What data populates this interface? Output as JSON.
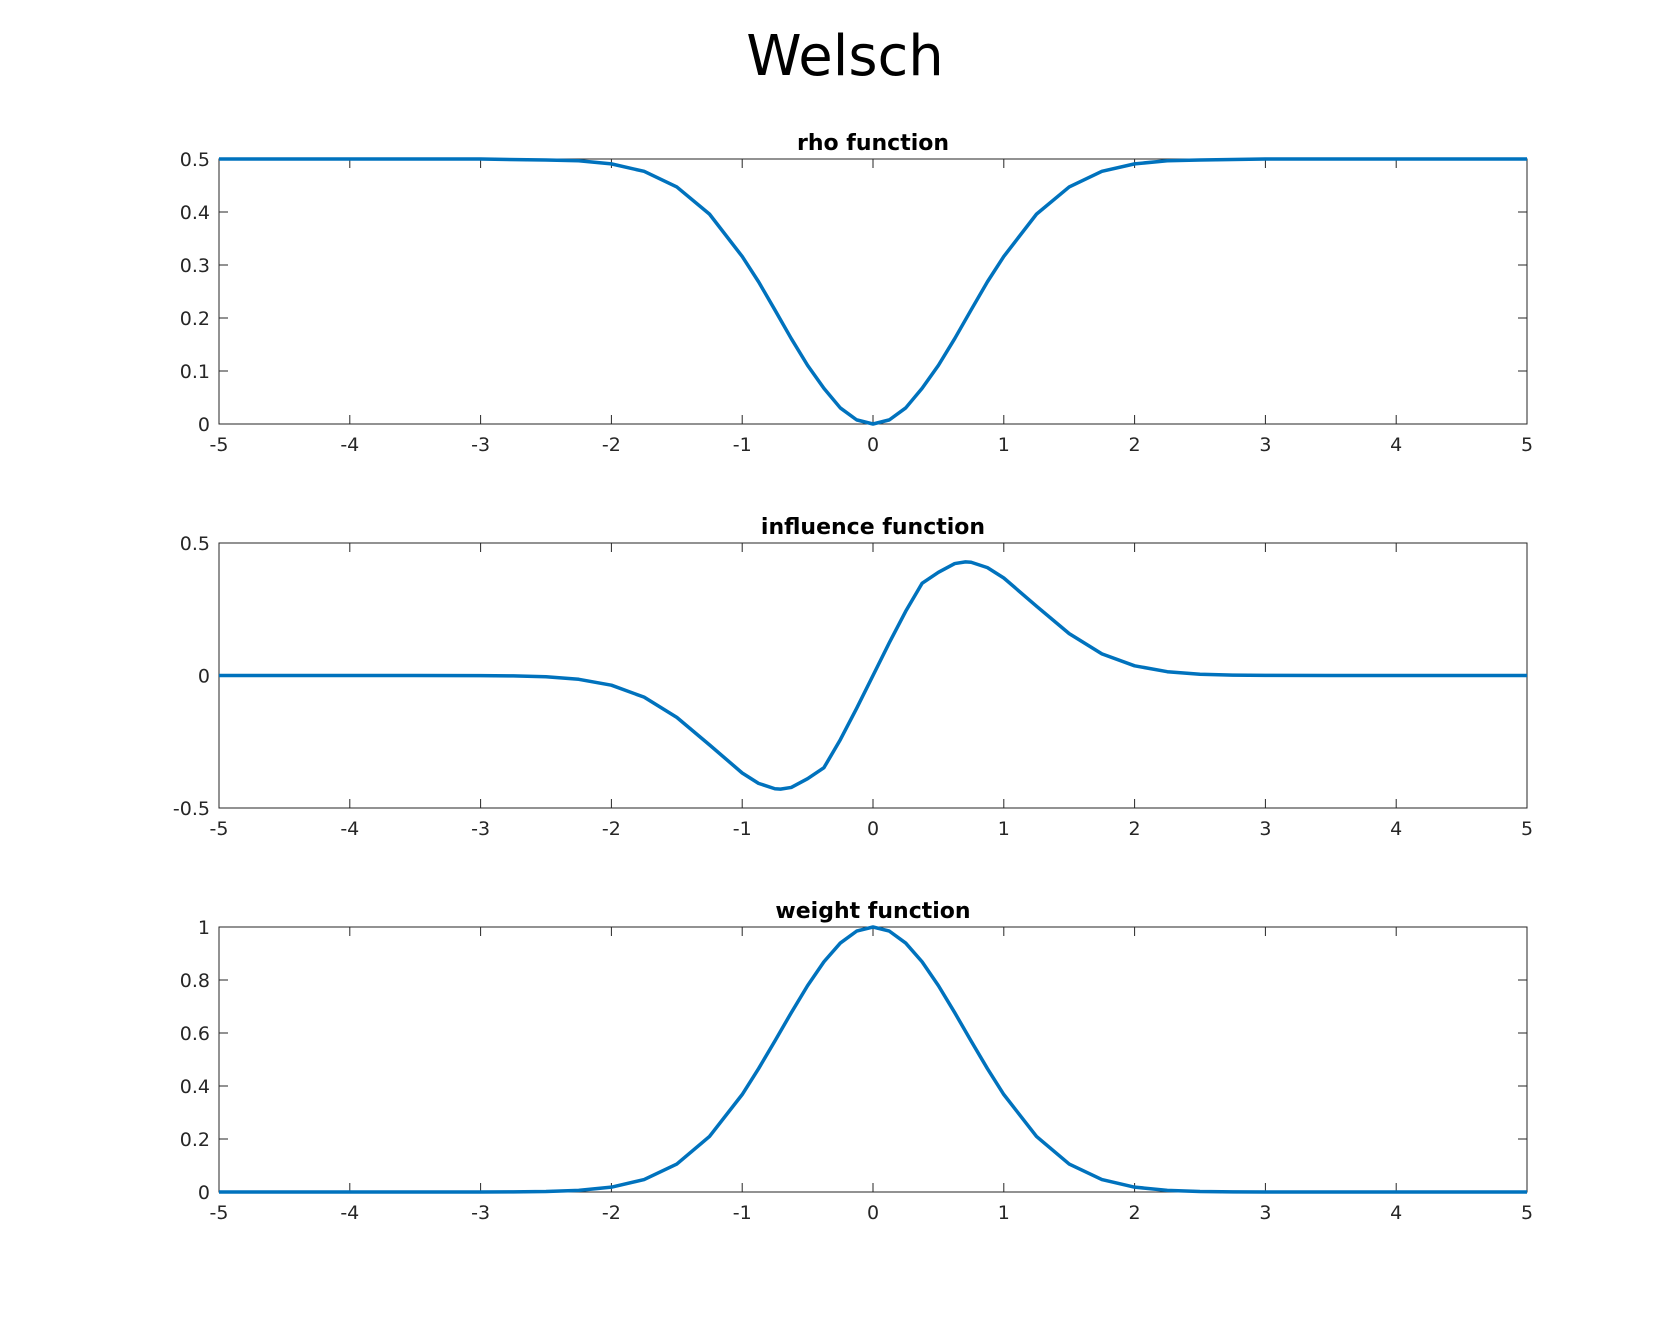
{
  "figure": {
    "title": "Welsch"
  },
  "chart_data": [
    {
      "type": "line",
      "title": "rho function",
      "xlabel": "",
      "ylabel": "",
      "xlim": [
        -5,
        5
      ],
      "ylim": [
        0,
        0.5
      ],
      "xticks": [
        -5,
        -4,
        -3,
        -2,
        -1,
        0,
        1,
        2,
        3,
        4,
        5
      ],
      "xtick_labels": [
        "-5",
        "-4",
        "-3",
        "-2",
        "-1",
        "0",
        "1",
        "2",
        "3",
        "4",
        "5"
      ],
      "yticks": [
        0,
        0.1,
        0.2,
        0.3,
        0.4,
        0.5
      ],
      "ytick_labels": [
        "0",
        "0.1",
        "0.2",
        "0.3",
        "0.4",
        "0.5"
      ],
      "grid": false,
      "color": "#0072BD",
      "series": [
        {
          "x": [
            -5,
            -4.5,
            -4,
            -3.5,
            -3,
            -2.5,
            -2.25,
            -2,
            -1.75,
            -1.5,
            -1.25,
            -1,
            -0.875,
            -0.75,
            -0.625,
            -0.5,
            -0.375,
            -0.25,
            -0.125,
            0,
            0.125,
            0.25,
            0.375,
            0.5,
            0.625,
            0.75,
            0.875,
            1,
            1.25,
            1.5,
            1.75,
            2,
            2.25,
            2.5,
            3,
            3.5,
            4,
            4.5,
            5
          ],
          "y": [
            0.5,
            0.5,
            0.5,
            0.5,
            0.5,
            0.498,
            0.4968,
            0.4908,
            0.4767,
            0.4473,
            0.396,
            0.3161,
            0.2684,
            0.2152,
            0.1612,
            0.1106,
            0.0672,
            0.0303,
            0.0078,
            0,
            0.0078,
            0.0303,
            0.0672,
            0.1106,
            0.1612,
            0.2152,
            0.2684,
            0.3161,
            0.396,
            0.4473,
            0.4767,
            0.4908,
            0.4968,
            0.498,
            0.5,
            0.5,
            0.5,
            0.5,
            0.5
          ]
        }
      ]
    },
    {
      "type": "line",
      "title": "influence function",
      "xlabel": "",
      "ylabel": "",
      "xlim": [
        -5,
        5
      ],
      "ylim": [
        -0.5,
        0.5
      ],
      "xticks": [
        -5,
        -4,
        -3,
        -2,
        -1,
        0,
        1,
        2,
        3,
        4,
        5
      ],
      "xtick_labels": [
        "-5",
        "-4",
        "-3",
        "-2",
        "-1",
        "0",
        "1",
        "2",
        "3",
        "4",
        "5"
      ],
      "yticks": [
        -0.5,
        0,
        0.5
      ],
      "ytick_labels": [
        "-0.5",
        "0",
        "0.5"
      ],
      "grid": false,
      "color": "#0072BD",
      "series": [
        {
          "x": [
            -5,
            -4.5,
            -4,
            -3.5,
            -3,
            -2.75,
            -2.5,
            -2.25,
            -2,
            -1.75,
            -1.5,
            -1.25,
            -1,
            -0.875,
            -0.75,
            -0.707,
            -0.625,
            -0.5,
            -0.375,
            -0.25,
            -0.125,
            0,
            0.125,
            0.25,
            0.375,
            0.5,
            0.625,
            0.707,
            0.75,
            0.875,
            1,
            1.25,
            1.5,
            1.75,
            2,
            2.25,
            2.5,
            2.75,
            3,
            3.5,
            4,
            4.5,
            5
          ],
          "y": [
            0,
            0,
            0,
            0,
            -0.0004,
            -0.0015,
            -0.0048,
            -0.0143,
            -0.0366,
            -0.0817,
            -0.1581,
            -0.2617,
            -0.3679,
            -0.4071,
            -0.4274,
            -0.4289,
            -0.4224,
            -0.3894,
            -0.3478,
            -0.2424,
            -0.124,
            0,
            0.124,
            0.2424,
            0.3478,
            0.3894,
            0.4224,
            0.4289,
            0.4274,
            0.4071,
            0.3679,
            0.2617,
            0.1581,
            0.0817,
            0.0366,
            0.0143,
            0.0048,
            0.0015,
            0.0004,
            0,
            0,
            0,
            0
          ]
        }
      ]
    },
    {
      "type": "line",
      "title": "weight function",
      "xlabel": "",
      "ylabel": "",
      "xlim": [
        -5,
        5
      ],
      "ylim": [
        0,
        1
      ],
      "xticks": [
        -5,
        -4,
        -3,
        -2,
        -1,
        0,
        1,
        2,
        3,
        4,
        5
      ],
      "xtick_labels": [
        "-5",
        "-4",
        "-3",
        "-2",
        "-1",
        "0",
        "1",
        "2",
        "3",
        "4",
        "5"
      ],
      "yticks": [
        0,
        0.2,
        0.4,
        0.6,
        0.8,
        1
      ],
      "ytick_labels": [
        "0",
        "0.2",
        "0.4",
        "0.6",
        "0.8",
        "1"
      ],
      "grid": false,
      "color": "#0072BD",
      "series": [
        {
          "x": [
            -5,
            -4.5,
            -4,
            -3.5,
            -3,
            -2.75,
            -2.5,
            -2.25,
            -2,
            -1.75,
            -1.5,
            -1.25,
            -1,
            -0.875,
            -0.75,
            -0.625,
            -0.5,
            -0.375,
            -0.25,
            -0.125,
            0,
            0.125,
            0.25,
            0.375,
            0.5,
            0.625,
            0.75,
            0.875,
            1,
            1.25,
            1.5,
            1.75,
            2,
            2.25,
            2.5,
            2.75,
            3,
            3.5,
            4,
            4.5,
            5
          ],
          "y": [
            0,
            0,
            0,
            0,
            0.0001,
            0.0005,
            0.0019,
            0.0063,
            0.0183,
            0.0468,
            0.1054,
            0.2096,
            0.3679,
            0.4653,
            0.5698,
            0.6766,
            0.7788,
            0.8688,
            0.9394,
            0.9845,
            1,
            0.9845,
            0.9394,
            0.8688,
            0.7788,
            0.6766,
            0.5698,
            0.4653,
            0.3679,
            0.2096,
            0.1054,
            0.0468,
            0.0183,
            0.0063,
            0.0019,
            0.0005,
            0.0001,
            0,
            0,
            0,
            0
          ]
        }
      ]
    }
  ]
}
